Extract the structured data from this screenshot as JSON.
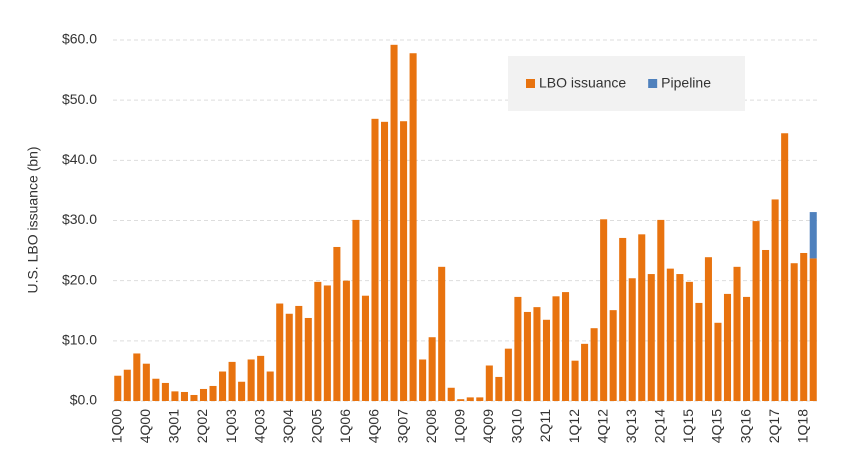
{
  "chart_data": {
    "type": "bar",
    "stacked": true,
    "y_label": "U.S. LBO issuance (bn)",
    "categories": [
      "1Q00",
      null,
      null,
      "4Q00",
      null,
      null,
      "3Q01",
      null,
      null,
      "2Q02",
      null,
      null,
      "1Q03",
      null,
      null,
      "4Q03",
      null,
      null,
      "3Q04",
      null,
      null,
      "2Q05",
      null,
      null,
      "1Q06",
      null,
      null,
      "4Q06",
      null,
      null,
      "3Q07",
      null,
      null,
      "2Q08",
      null,
      null,
      "1Q09",
      null,
      null,
      "4Q09",
      null,
      null,
      "3Q10",
      null,
      null,
      "2Q11",
      null,
      null,
      "1Q12",
      null,
      null,
      "4Q12",
      null,
      null,
      "3Q13",
      null,
      null,
      "2Q14",
      null,
      null,
      "1Q15",
      null,
      null,
      "4Q15",
      null,
      null,
      "3Q16",
      null,
      null,
      "2Q17",
      null,
      null,
      "1Q18",
      null
    ],
    "series": [
      {
        "name": "LBO issuance",
        "color": "#e8730f",
        "values": [
          4.2,
          5.2,
          7.9,
          6.2,
          3.7,
          3.0,
          1.6,
          1.5,
          1.0,
          2.0,
          2.5,
          4.9,
          6.5,
          3.2,
          6.9,
          7.5,
          4.9,
          16.2,
          14.5,
          15.8,
          13.8,
          19.8,
          19.2,
          25.6,
          20.0,
          30.1,
          17.5,
          46.9,
          46.4,
          59.2,
          46.5,
          57.8,
          6.9,
          10.6,
          22.3,
          2.2,
          0.3,
          0.6,
          0.6,
          5.9,
          4.0,
          8.7,
          17.3,
          14.8,
          15.6,
          13.5,
          17.4,
          18.1,
          6.7,
          9.5,
          12.1,
          30.2,
          15.1,
          27.1,
          20.4,
          27.7,
          21.1,
          30.1,
          22.0,
          21.1,
          19.8,
          16.3,
          23.9,
          13.0,
          17.8,
          22.3,
          17.3,
          29.9,
          25.1,
          33.5,
          44.5,
          22.9,
          24.6,
          23.7
        ]
      },
      {
        "name": "Pipeline",
        "color": "#4f81bd",
        "values": [
          null,
          null,
          null,
          null,
          null,
          null,
          null,
          null,
          null,
          null,
          null,
          null,
          null,
          null,
          null,
          null,
          null,
          null,
          null,
          null,
          null,
          null,
          null,
          null,
          null,
          null,
          null,
          null,
          null,
          null,
          null,
          null,
          null,
          null,
          null,
          null,
          null,
          null,
          null,
          null,
          null,
          null,
          null,
          null,
          null,
          null,
          null,
          null,
          null,
          null,
          null,
          null,
          null,
          null,
          null,
          null,
          null,
          null,
          null,
          null,
          null,
          null,
          null,
          null,
          null,
          null,
          null,
          null,
          null,
          null,
          null,
          null,
          null,
          7.7
        ]
      }
    ],
    "ylim": [
      0,
      60
    ],
    "yticks": [
      {
        "value": 0,
        "label": "$0.0"
      },
      {
        "value": 10,
        "label": "$10.0"
      },
      {
        "value": 20,
        "label": "$20.0"
      },
      {
        "value": 30,
        "label": "$30.0"
      },
      {
        "value": 40,
        "label": "$40.0"
      },
      {
        "value": 50,
        "label": "$50.0"
      },
      {
        "value": 60,
        "label": "$60.0"
      }
    ],
    "grid": true,
    "legend": "top-right"
  }
}
